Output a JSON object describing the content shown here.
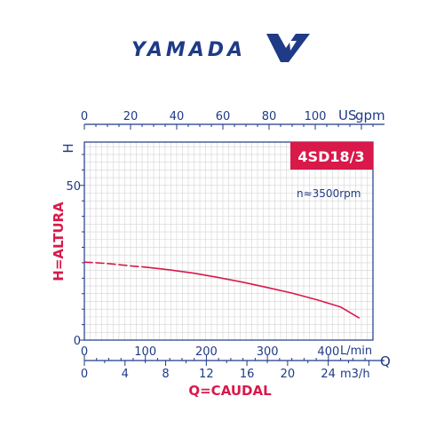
{
  "brand": {
    "name": "YAMADA",
    "color": "#1f3a86"
  },
  "colors": {
    "axis": "#1f3a86",
    "accent": "#d8194a",
    "grid": "#d3d3d3",
    "curve": "#d8194a"
  },
  "chart_data": {
    "type": "line",
    "model_badge": "4SD18/3",
    "speed_note": "n≈3500rpm",
    "ylabel": "H=ALTURA",
    "y_unit": "H",
    "y_ticks": [
      "0",
      "50"
    ],
    "ylim": [
      0,
      64
    ],
    "xlabel": "Q=CAUDAL",
    "x_letter": "Q",
    "x_axes": [
      {
        "unit": "US gpm",
        "ticks": [
          "0",
          "20",
          "40",
          "60",
          "80",
          "100"
        ],
        "range": [
          0,
          125
        ]
      },
      {
        "unit": "L/min",
        "ticks": [
          "0",
          "100",
          "200",
          "300",
          "400"
        ],
        "range": [
          0,
          473
        ]
      },
      {
        "unit": "m3/h",
        "ticks": [
          "0",
          "4",
          "8",
          "12",
          "16",
          "20",
          "24"
        ],
        "range": [
          0,
          28.4
        ]
      }
    ],
    "grid": true,
    "series": [
      {
        "style": "dashed",
        "x_lpm": [
          0,
          20,
          40,
          60,
          80,
          100
        ],
        "y_m": [
          25.2,
          25.0,
          24.7,
          24.3,
          23.9,
          23.6
        ]
      },
      {
        "style": "solid",
        "x_lpm": [
          100,
          140,
          180,
          220,
          260,
          300,
          340,
          380,
          420,
          450
        ],
        "y_m": [
          23.6,
          22.7,
          21.6,
          20.2,
          18.7,
          17.0,
          15.2,
          13.1,
          10.7,
          7.2
        ]
      }
    ]
  }
}
